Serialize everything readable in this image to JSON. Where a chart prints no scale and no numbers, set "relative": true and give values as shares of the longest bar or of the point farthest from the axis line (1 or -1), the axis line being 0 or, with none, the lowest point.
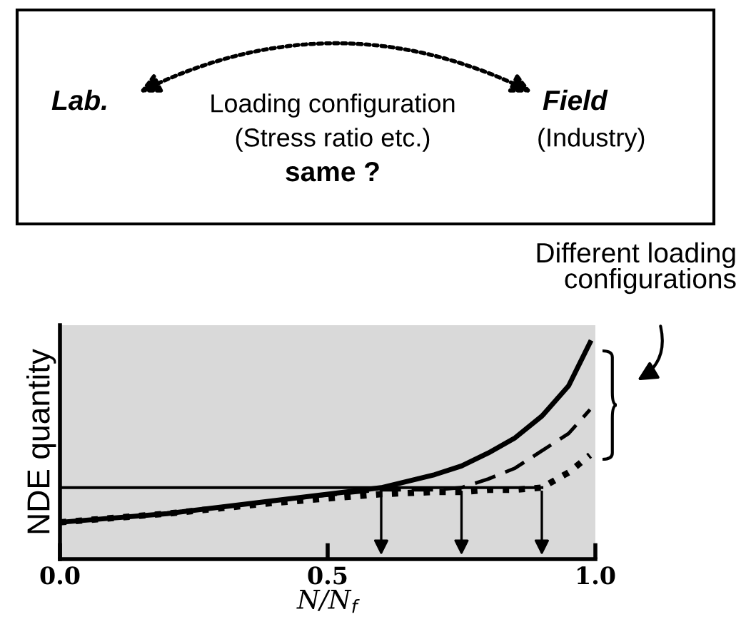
{
  "chart_data": {
    "type": "line",
    "relative": true,
    "xlabel": "N/N$_{f}$",
    "ylabel": "NDE quantity",
    "xlim": [
      0,
      1.0
    ],
    "xticks": [
      {
        "value": 0,
        "label": "0.0"
      },
      {
        "value": 0.5,
        "label": "0.5"
      },
      {
        "value": 1.0,
        "label": "1.0"
      }
    ],
    "x": [
      0,
      0.2,
      0.4,
      0.6,
      0.7,
      0.75,
      0.8,
      0.85,
      0.9,
      0.95,
      0.99
    ],
    "series": [
      {
        "color": "#000000",
        "line_style": "solid",
        "values": [
          0.17,
          0.21,
          0.27,
          0.33,
          0.39,
          0.43,
          0.49,
          0.56,
          0.66,
          0.8,
          1.0
        ]
      },
      {
        "color": "#000000",
        "line_style": "dashed",
        "values": [
          0.17,
          0.21,
          0.27,
          0.32,
          0.32,
          0.33,
          0.37,
          0.42,
          0.5,
          0.58,
          0.69
        ]
      },
      {
        "color": "#000000",
        "line_style": "dotted",
        "values": [
          0.17,
          0.21,
          0.26,
          0.3,
          0.31,
          0.31,
          0.32,
          0.32,
          0.33,
          0.4,
          0.48
        ]
      }
    ],
    "ref_lines": [
      {
        "axis": "y",
        "value": 0.33,
        "color": "#000000",
        "line_style": "solid"
      }
    ],
    "grid": false,
    "legend": false,
    "annotations": [
      "Lab.",
      "Loading configuration",
      "(Stress ratio etc.)",
      "same ?",
      "Field",
      "(Industry)",
      "Different loading\nconfigurations"
    ]
  }
}
